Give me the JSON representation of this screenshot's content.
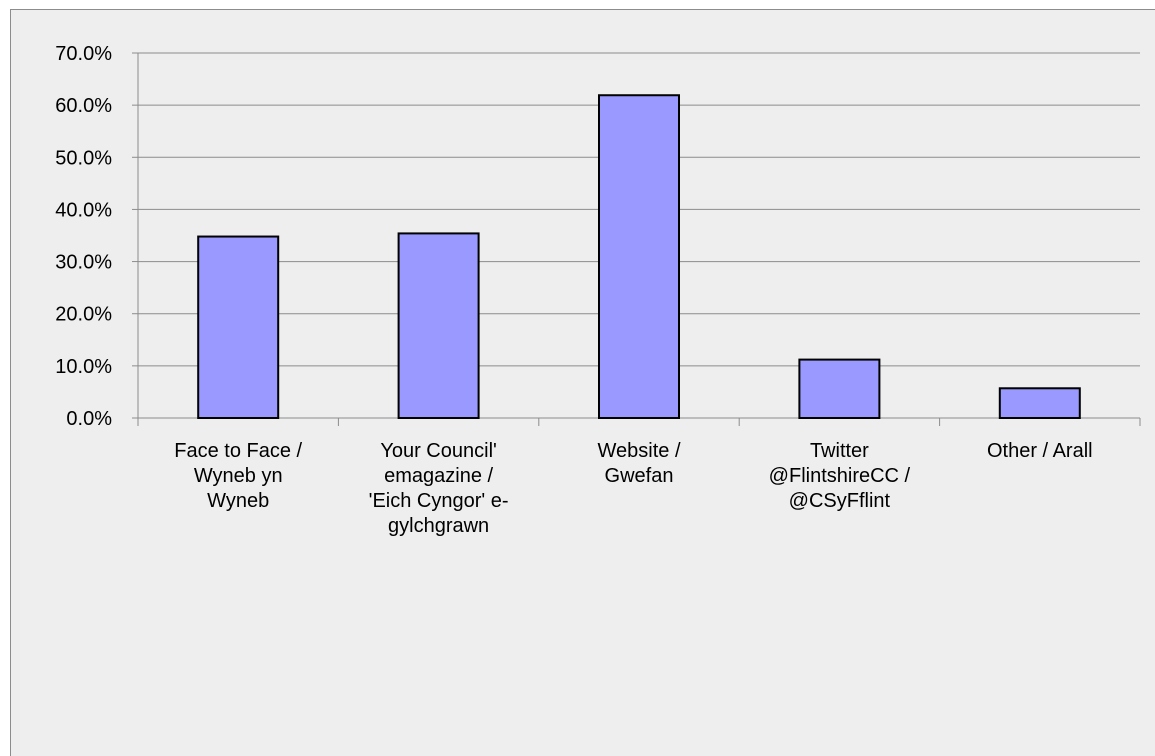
{
  "chart_data": {
    "type": "bar",
    "categories": [
      [
        "Face to Face /",
        "Wyneb yn",
        "Wyneb"
      ],
      [
        "Your Council'",
        "emagazine /",
        "'Eich Cyngor' e-",
        "gylchgrawn"
      ],
      [
        "Website /",
        "Gwefan"
      ],
      [
        "Twitter",
        "@FlintshireCC /",
        "@CSyFflint"
      ],
      [
        "Other / Arall"
      ]
    ],
    "values": [
      34.8,
      35.4,
      61.9,
      11.2,
      5.7
    ],
    "ylim": [
      0,
      70
    ],
    "yticks": [
      "0.0%",
      "10.0%",
      "20.0%",
      "30.0%",
      "40.0%",
      "50.0%",
      "60.0%",
      "70.0%"
    ],
    "grid": true,
    "colors": {
      "bar_fill": "#9999ff",
      "bar_stroke": "#000000",
      "plot_background": "#eeeeee",
      "gridline": "#8c8c8c"
    }
  }
}
